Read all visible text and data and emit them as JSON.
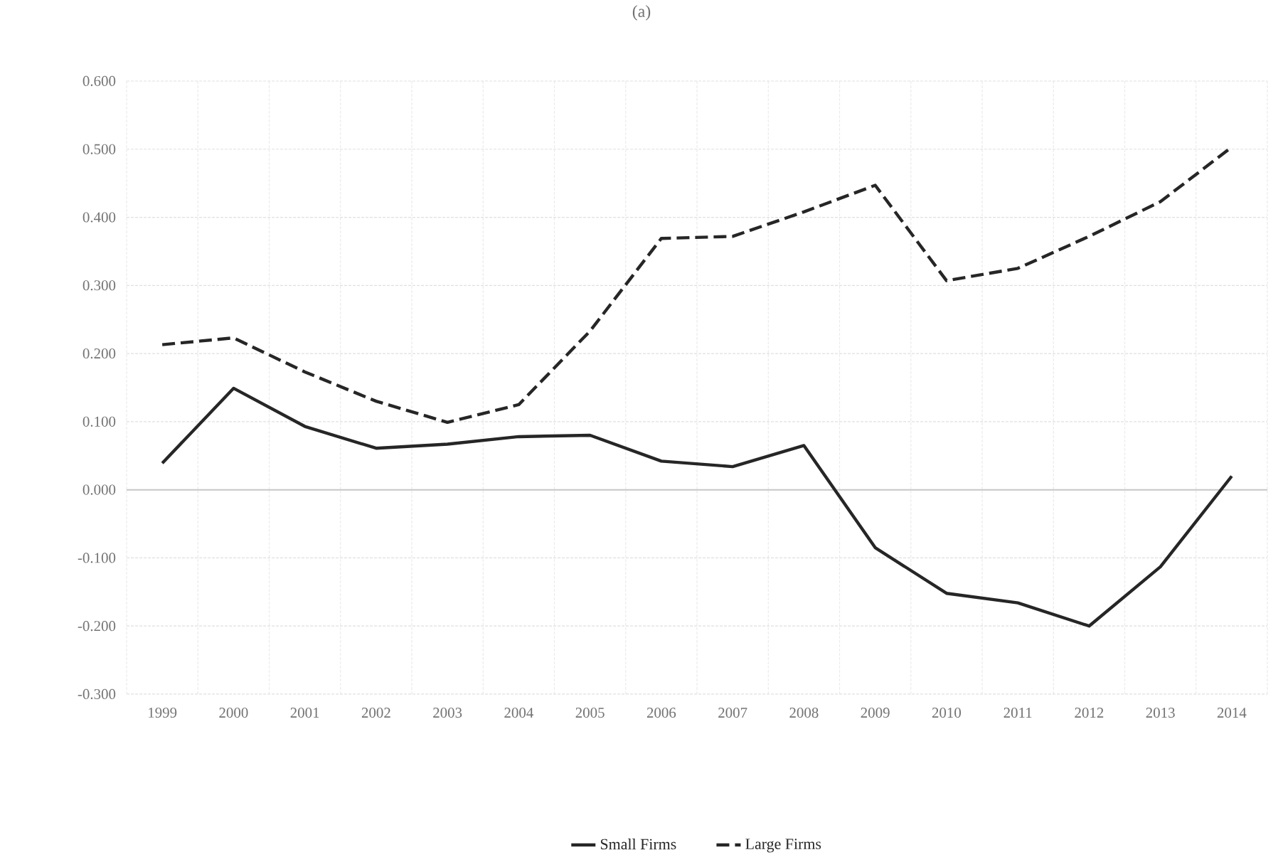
{
  "chart_data": {
    "type": "line",
    "title": "(a)",
    "categories": [
      "1999",
      "2000",
      "2001",
      "2002",
      "2003",
      "2004",
      "2005",
      "2006",
      "2007",
      "2008",
      "2009",
      "2010",
      "2011",
      "2012",
      "2013",
      "2014"
    ],
    "series": [
      {
        "name": "Small Firms",
        "color": "#262626",
        "line_style": "solid",
        "values": [
          0.039,
          0.149,
          0.093,
          0.061,
          0.067,
          0.078,
          0.08,
          0.042,
          0.034,
          0.065,
          -0.085,
          -0.152,
          -0.166,
          -0.2,
          -0.113,
          0.02
        ]
      },
      {
        "name": "Large Firms",
        "color": "#262626",
        "line_style": "dashed",
        "values": [
          0.213,
          0.223,
          0.173,
          0.13,
          0.099,
          0.125,
          0.233,
          0.369,
          0.372,
          0.408,
          0.447,
          0.307,
          0.325,
          0.372,
          0.423,
          0.503
        ]
      }
    ],
    "ylim": [
      -0.3,
      0.6
    ],
    "yticks": [
      {
        "value": -0.3,
        "label": "-0.300"
      },
      {
        "value": -0.2,
        "label": "-0.200"
      },
      {
        "value": -0.1,
        "label": "-0.100"
      },
      {
        "value": 0,
        "label": "0.000"
      },
      {
        "value": 0.1,
        "label": "0.100"
      },
      {
        "value": 0.2,
        "label": "0.200"
      },
      {
        "value": 0.3,
        "label": "0.300"
      },
      {
        "value": 0.4,
        "label": "0.400"
      },
      {
        "value": 0.5,
        "label": "0.500"
      },
      {
        "value": 0.6,
        "label": "0.600"
      }
    ],
    "grid": true,
    "legend": "bottom",
    "marker": "none"
  }
}
